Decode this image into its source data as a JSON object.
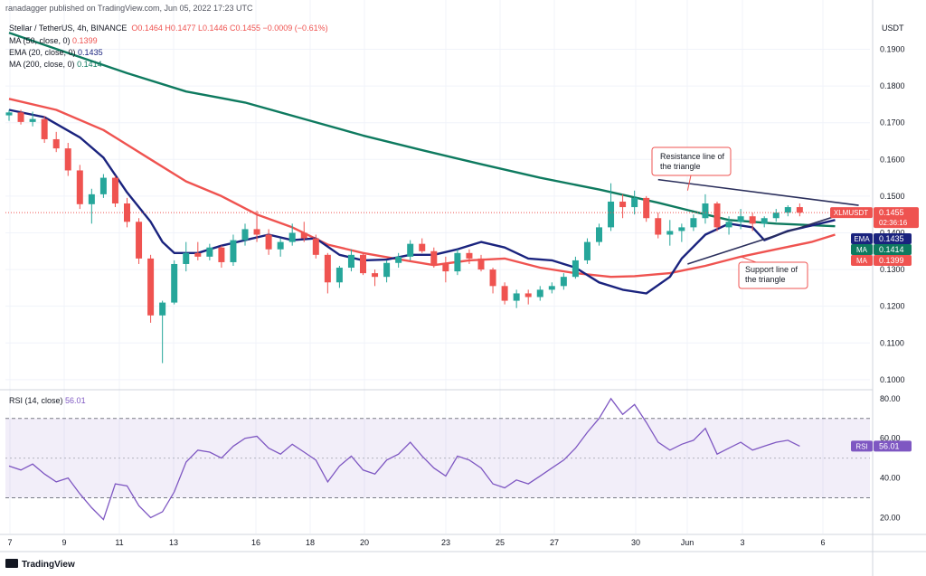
{
  "header": {
    "publisher": "ranadagger published on TradingView.com, Jun 05, 2022 17:23 UTC",
    "symbol": "Stellar / TetherUS, 4h, BINANCE",
    "ohlc": "O0.1464  H0.1477  L0.1446  C0.1455  −0.0009 (−0.61%)"
  },
  "indicators": [
    {
      "name": "MA (50, close, 0)",
      "value": "0.1399",
      "color": "#ef5350"
    },
    {
      "name": "EMA (20, close, 0)",
      "value": "0.1435",
      "color": "#1a237e"
    },
    {
      "name": "MA (200, close, 0)",
      "value": "0.1414",
      "color": "#0e7a5f"
    }
  ],
  "rsi_legend": {
    "name": "RSI (14, close)",
    "value": "56.01"
  },
  "branding": "TradingView",
  "chart_data": [
    {
      "type": "candlestick",
      "ylabel": "USDT",
      "ylim": [
        0.0975,
        0.1985
      ],
      "y_ticks": [
        "0.1900",
        "0.1800",
        "0.1700",
        "0.1600",
        "0.1500",
        "0.1400",
        "0.1300",
        "0.1200",
        "0.1100",
        "0.1000"
      ],
      "x_ticks": [
        "7",
        "9",
        "11",
        "13",
        "16",
        "18",
        "20",
        "23",
        "25",
        "27",
        "30",
        "Jun",
        "3",
        "6"
      ],
      "last_price": {
        "symbol": "XLMUSDT",
        "price": "0.1455",
        "countdown": "02:36:16",
        "value": 0.1455
      },
      "price_labels": [
        {
          "tag": "EMA",
          "value": "0.1435",
          "color": "#1a237e"
        },
        {
          "tag": "MA",
          "value": "0.1414",
          "color": "#0e7a5f"
        },
        {
          "tag": "MA",
          "value": "0.1399",
          "color": "#ef5350"
        }
      ],
      "series": [
        {
          "name": "MA (200, close, 0)",
          "color": "#0e7a5f",
          "points": [
            [
              0,
              0.1945
            ],
            [
              5,
              0.189
            ],
            [
              10,
              0.1835
            ],
            [
              15,
              0.1785
            ],
            [
              20,
              0.1755
            ],
            [
              25,
              0.171
            ],
            [
              30,
              0.1665
            ],
            [
              35,
              0.1625
            ],
            [
              40,
              0.1587
            ],
            [
              45,
              0.155
            ],
            [
              50,
              0.1518
            ],
            [
              55,
              0.1482
            ],
            [
              58,
              0.1458
            ],
            [
              61,
              0.1435
            ],
            [
              65,
              0.1425
            ],
            [
              70,
              0.1418
            ]
          ]
        },
        {
          "name": "MA (50, close, 0)",
          "color": "#ef5350",
          "points": [
            [
              0,
              0.1765
            ],
            [
              4,
              0.1735
            ],
            [
              8,
              0.168
            ],
            [
              12,
              0.16
            ],
            [
              15,
              0.154
            ],
            [
              18,
              0.15
            ],
            [
              21,
              0.145
            ],
            [
              24,
              0.1415
            ],
            [
              27,
              0.1368
            ],
            [
              30,
              0.1345
            ],
            [
              33,
              0.1328
            ],
            [
              36,
              0.1312
            ],
            [
              39,
              0.1325
            ],
            [
              42,
              0.133
            ],
            [
              45,
              0.1305
            ],
            [
              48,
              0.129
            ],
            [
              51,
              0.128
            ],
            [
              53,
              0.1282
            ],
            [
              56,
              0.129
            ],
            [
              59,
              0.131
            ],
            [
              62,
              0.1335
            ],
            [
              65,
              0.1355
            ],
            [
              68,
              0.1375
            ],
            [
              70,
              0.1395
            ]
          ]
        },
        {
          "name": "EMA (20, close, 0)",
          "color": "#1a237e",
          "points": [
            [
              0,
              0.1735
            ],
            [
              3,
              0.1715
            ],
            [
              6,
              0.166
            ],
            [
              8,
              0.1605
            ],
            [
              10,
              0.151
            ],
            [
              12,
              0.143
            ],
            [
              13,
              0.1375
            ],
            [
              14,
              0.1345
            ],
            [
              16,
              0.1345
            ],
            [
              18,
              0.1365
            ],
            [
              20,
              0.138
            ],
            [
              22,
              0.1395
            ],
            [
              24,
              0.138
            ],
            [
              26,
              0.1385
            ],
            [
              28,
              0.134
            ],
            [
              30,
              0.1325
            ],
            [
              32,
              0.1327
            ],
            [
              34,
              0.134
            ],
            [
              36,
              0.134
            ],
            [
              38,
              0.1355
            ],
            [
              40,
              0.1375
            ],
            [
              42,
              0.136
            ],
            [
              44,
              0.133
            ],
            [
              46,
              0.1325
            ],
            [
              48,
              0.1305
            ],
            [
              50,
              0.1265
            ],
            [
              52,
              0.1245
            ],
            [
              54,
              0.1235
            ],
            [
              56,
              0.128
            ],
            [
              57,
              0.133
            ],
            [
              59,
              0.1395
            ],
            [
              61,
              0.1425
            ],
            [
              63,
              0.1415
            ],
            [
              64,
              0.138
            ],
            [
              66,
              0.1405
            ],
            [
              68,
              0.142
            ],
            [
              70,
              0.1435
            ]
          ]
        }
      ],
      "candles": [
        [
          0,
          0.172,
          0.1735,
          0.1705,
          0.1728
        ],
        [
          1,
          0.1728,
          0.1735,
          0.1695,
          0.1702
        ],
        [
          2,
          0.1702,
          0.173,
          0.169,
          0.171
        ],
        [
          3,
          0.171,
          0.1718,
          0.1645,
          0.1655
        ],
        [
          4,
          0.1655,
          0.1675,
          0.162,
          0.163
        ],
        [
          5,
          0.163,
          0.1645,
          0.1555,
          0.157
        ],
        [
          6,
          0.157,
          0.1585,
          0.1465,
          0.1478
        ],
        [
          7,
          0.1478,
          0.152,
          0.1425,
          0.1505
        ],
        [
          8,
          0.1505,
          0.156,
          0.1495,
          0.155
        ],
        [
          9,
          0.155,
          0.1555,
          0.147,
          0.148
        ],
        [
          10,
          0.148,
          0.1495,
          0.1415,
          0.143
        ],
        [
          11,
          0.143,
          0.144,
          0.1315,
          0.133
        ],
        [
          12,
          0.133,
          0.134,
          0.1155,
          0.1175
        ],
        [
          13,
          0.1175,
          0.1215,
          0.1045,
          0.121
        ],
        [
          14,
          0.121,
          0.1325,
          0.1205,
          0.1315
        ],
        [
          15,
          0.1315,
          0.1375,
          0.1295,
          0.1345
        ],
        [
          16,
          0.1345,
          0.1375,
          0.1325,
          0.1335
        ],
        [
          17,
          0.1335,
          0.137,
          0.1325,
          0.136
        ],
        [
          18,
          0.136,
          0.1365,
          0.1305,
          0.132
        ],
        [
          19,
          0.132,
          0.1395,
          0.131,
          0.138
        ],
        [
          20,
          0.138,
          0.1425,
          0.1365,
          0.141
        ],
        [
          21,
          0.141,
          0.146,
          0.1375,
          0.1395
        ],
        [
          22,
          0.1395,
          0.141,
          0.134,
          0.1355
        ],
        [
          23,
          0.1355,
          0.1385,
          0.1335,
          0.1375
        ],
        [
          24,
          0.1375,
          0.1425,
          0.1365,
          0.14
        ],
        [
          25,
          0.14,
          0.143,
          0.1375,
          0.1385
        ],
        [
          26,
          0.1385,
          0.1395,
          0.133,
          0.134
        ],
        [
          27,
          0.134,
          0.1345,
          0.1235,
          0.1265
        ],
        [
          28,
          0.1265,
          0.131,
          0.125,
          0.1305
        ],
        [
          29,
          0.1305,
          0.1355,
          0.1295,
          0.134
        ],
        [
          30,
          0.134,
          0.1345,
          0.1285,
          0.129
        ],
        [
          31,
          0.129,
          0.13,
          0.1255,
          0.128
        ],
        [
          32,
          0.128,
          0.1325,
          0.1265,
          0.1318
        ],
        [
          33,
          0.1318,
          0.1345,
          0.1305,
          0.1335
        ],
        [
          34,
          0.1335,
          0.138,
          0.1325,
          0.137
        ],
        [
          35,
          0.137,
          0.1385,
          0.1345,
          0.135
        ],
        [
          36,
          0.135,
          0.136,
          0.1305,
          0.1315
        ],
        [
          37,
          0.1315,
          0.1335,
          0.1265,
          0.1295
        ],
        [
          38,
          0.1295,
          0.1355,
          0.1285,
          0.1345
        ],
        [
          39,
          0.1345,
          0.1355,
          0.1315,
          0.133
        ],
        [
          40,
          0.133,
          0.134,
          0.1295,
          0.13
        ],
        [
          41,
          0.13,
          0.1305,
          0.1235,
          0.1255
        ],
        [
          42,
          0.1255,
          0.1265,
          0.1205,
          0.1215
        ],
        [
          43,
          0.1215,
          0.1245,
          0.1195,
          0.1235
        ],
        [
          44,
          0.1235,
          0.1245,
          0.1205,
          0.1225
        ],
        [
          45,
          0.1225,
          0.1255,
          0.1215,
          0.1245
        ],
        [
          46,
          0.1245,
          0.1265,
          0.1235,
          0.1255
        ],
        [
          47,
          0.1255,
          0.129,
          0.1245,
          0.128
        ],
        [
          48,
          0.128,
          0.1335,
          0.1275,
          0.1325
        ],
        [
          49,
          0.1325,
          0.1385,
          0.1315,
          0.1375
        ],
        [
          50,
          0.1375,
          0.1425,
          0.1365,
          0.1415
        ],
        [
          51,
          0.1415,
          0.1535,
          0.1405,
          0.1485
        ],
        [
          52,
          0.1485,
          0.1505,
          0.144,
          0.147
        ],
        [
          53,
          0.147,
          0.1515,
          0.145,
          0.1495
        ],
        [
          54,
          0.1495,
          0.15,
          0.143,
          0.144
        ],
        [
          55,
          0.144,
          0.1455,
          0.1385,
          0.1395
        ],
        [
          56,
          0.1395,
          0.1435,
          0.1365,
          0.1405
        ],
        [
          57,
          0.1405,
          0.1425,
          0.1375,
          0.1415
        ],
        [
          58,
          0.1415,
          0.145,
          0.1405,
          0.144
        ],
        [
          59,
          0.144,
          0.1505,
          0.1425,
          0.148
        ],
        [
          60,
          0.148,
          0.1485,
          0.1405,
          0.1415
        ],
        [
          61,
          0.1415,
          0.1445,
          0.1395,
          0.143
        ],
        [
          62,
          0.143,
          0.1465,
          0.141,
          0.1445
        ],
        [
          63,
          0.1445,
          0.1455,
          0.1405,
          0.1425
        ],
        [
          64,
          0.1425,
          0.1445,
          0.1415,
          0.144
        ],
        [
          65,
          0.144,
          0.1465,
          0.143,
          0.1455
        ],
        [
          66,
          0.1455,
          0.1475,
          0.1445,
          0.147
        ],
        [
          67,
          0.147,
          0.148,
          0.1445,
          0.1455
        ]
      ],
      "trendlines": [
        {
          "name": "resistance",
          "from": [
            55,
            0.1545
          ],
          "to": [
            72,
            0.1475
          ],
          "color": "#2a2e5b"
        },
        {
          "name": "support",
          "from": [
            57.5,
            0.1315
          ],
          "to": [
            70,
            0.1445
          ],
          "color": "#2a2e5b"
        }
      ],
      "annotations": [
        {
          "text": [
            "Resistance line of",
            "the triangle"
          ],
          "anchor": [
            57.5,
            0.1515
          ]
        },
        {
          "text": [
            "Support line of",
            "the triangle"
          ],
          "anchor": [
            62,
            0.1335
          ]
        }
      ]
    },
    {
      "type": "line",
      "name": "RSI (14, close)",
      "ylim": [
        12,
        84
      ],
      "y_ticks": [
        "80.00",
        "60.00",
        "40.00",
        "20.00"
      ],
      "bands": [
        30,
        70
      ],
      "current": {
        "tag": "RSI",
        "value": "56.01",
        "v": 56.01
      },
      "values": [
        [
          0,
          46
        ],
        [
          1,
          44
        ],
        [
          2,
          47
        ],
        [
          3,
          42
        ],
        [
          4,
          38
        ],
        [
          5,
          40
        ],
        [
          6,
          32
        ],
        [
          7,
          25
        ],
        [
          8,
          19
        ],
        [
          9,
          37
        ],
        [
          10,
          36
        ],
        [
          11,
          26
        ],
        [
          12,
          20
        ],
        [
          13,
          23
        ],
        [
          14,
          33
        ],
        [
          15,
          48
        ],
        [
          16,
          54
        ],
        [
          17,
          53
        ],
        [
          18,
          50
        ],
        [
          19,
          56
        ],
        [
          20,
          60
        ],
        [
          21,
          61
        ],
        [
          22,
          55
        ],
        [
          23,
          52
        ],
        [
          24,
          57
        ],
        [
          25,
          53
        ],
        [
          26,
          49
        ],
        [
          27,
          38
        ],
        [
          28,
          46
        ],
        [
          29,
          51
        ],
        [
          30,
          44
        ],
        [
          31,
          42
        ],
        [
          32,
          49
        ],
        [
          33,
          52
        ],
        [
          34,
          58
        ],
        [
          35,
          51
        ],
        [
          36,
          45
        ],
        [
          37,
          41
        ],
        [
          38,
          51
        ],
        [
          39,
          49
        ],
        [
          40,
          45
        ],
        [
          41,
          37
        ],
        [
          42,
          35
        ],
        [
          43,
          39
        ],
        [
          44,
          37
        ],
        [
          45,
          41
        ],
        [
          46,
          45
        ],
        [
          47,
          49
        ],
        [
          48,
          55
        ],
        [
          49,
          63
        ],
        [
          50,
          70
        ],
        [
          51,
          80
        ],
        [
          52,
          72
        ],
        [
          53,
          77
        ],
        [
          54,
          68
        ],
        [
          55,
          58
        ],
        [
          56,
          54
        ],
        [
          57,
          57
        ],
        [
          58,
          59
        ],
        [
          59,
          65
        ],
        [
          60,
          52
        ],
        [
          61,
          55
        ],
        [
          62,
          58
        ],
        [
          63,
          54
        ],
        [
          64,
          56
        ],
        [
          65,
          58
        ],
        [
          66,
          59
        ],
        [
          67,
          56.01
        ]
      ]
    }
  ]
}
